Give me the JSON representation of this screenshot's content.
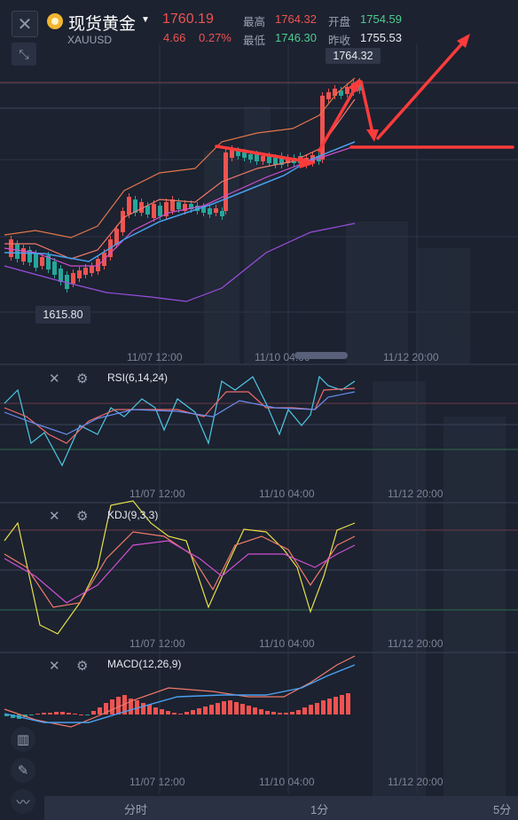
{
  "header": {
    "title": "现货黄金",
    "symbol": "XAUUSD",
    "price": "1760.19",
    "change": "4.66",
    "change_pct": "0.27%",
    "high_label": "最高",
    "high_value": "1764.32",
    "low_label": "最低",
    "low_value": "1746.30",
    "open_label": "开盘",
    "open_value": "1754.59",
    "prev_close_label": "昨收",
    "prev_close_value": "1755.53"
  },
  "main_chart": {
    "max_price_tag": "1764.32",
    "min_price_tag": "1615.80",
    "time_ticks": [
      "11/07 12:00",
      "11/10 04:00",
      "11/12 20:00"
    ]
  },
  "panels": {
    "rsi": {
      "label": "RSI(6,14,24)",
      "time_ticks": [
        "11/07 12:00",
        "11/10 04:00",
        "11/12 20:00"
      ]
    },
    "kdj": {
      "label": "KDJ(9,3,3)",
      "time_ticks": [
        "11/07 12:00",
        "11/10 04:00",
        "11/12 20:00"
      ]
    },
    "macd": {
      "label": "MACD(12,26,9)",
      "time_ticks": [
        "11/07 12:00",
        "11/10 04:00",
        "11/12 20:00"
      ]
    }
  },
  "timeframes": [
    "分时",
    "1分",
    "5分"
  ],
  "colors": {
    "up": "#ef5350",
    "down": "#26a69a",
    "background": "#1c2230",
    "annotation": "#ff3b3b"
  },
  "icons": {
    "close": "close-icon",
    "expand": "collapse-arrows-icon",
    "settings": "gear-icon",
    "candle_tool": "candlestick-icon",
    "pen_tool": "pencil-icon",
    "line_tool": "line-chart-icon"
  }
}
